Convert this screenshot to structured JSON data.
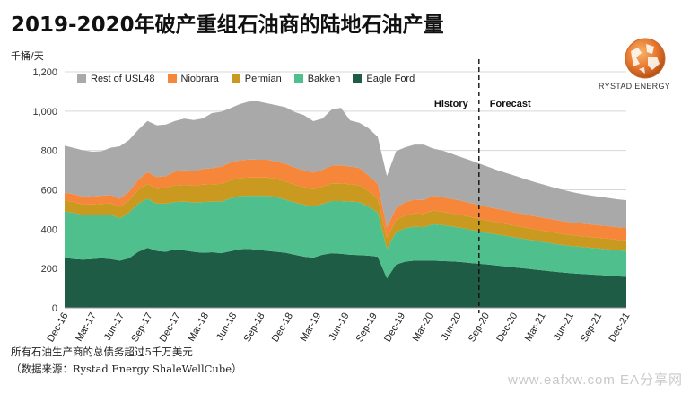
{
  "title": "2019-2020年破产重组石油商的陆地石油产量",
  "unit_label": "千桶/天",
  "brand": "RYSTAD ENERGY",
  "footnote1": "所有石油生产商的总债务超过5千万美元",
  "footnote2": "（数据来源：Rystad Energy ShaleWellCube）",
  "watermark": "www.eafxw.com  EA分享网",
  "chart_data": {
    "type": "area",
    "stacked": true,
    "ylim": [
      0,
      1200
    ],
    "yticks": [
      0,
      200,
      400,
      600,
      800,
      1000,
      1200
    ],
    "ytick_labels": [
      "0",
      "200",
      "400",
      "600",
      "800",
      "1,000",
      "1,200"
    ],
    "xtick_labels": [
      "Dec-16",
      "Mar-17",
      "Jun-17",
      "Sep-17",
      "Dec-17",
      "Mar-18",
      "Jun-18",
      "Sep-18",
      "Dec-18",
      "Mar-19",
      "Jun-19",
      "Sep-19",
      "Dec-19",
      "Mar-20",
      "Jun-20",
      "Sep-20",
      "Dec-20",
      "Mar-21",
      "Jun-21",
      "Sep-21",
      "Dec-21"
    ],
    "divider_label_left": "History",
    "divider_label_right": "Forecast",
    "divider_after_index": 45,
    "legend_order": [
      "Rest of USL48",
      "Niobrara",
      "Permian",
      "Bakken",
      "Eagle Ford"
    ],
    "grid": true,
    "legend": "top",
    "series": [
      {
        "name": "Eagle Ford",
        "color": "#1f5c45",
        "values": [
          255,
          248,
          245,
          248,
          252,
          248,
          240,
          252,
          285,
          305,
          290,
          285,
          298,
          292,
          285,
          280,
          283,
          278,
          288,
          298,
          300,
          295,
          290,
          285,
          280,
          270,
          260,
          255,
          270,
          278,
          275,
          270,
          268,
          265,
          260,
          150,
          220,
          235,
          240,
          240,
          240,
          238,
          236,
          233,
          228,
          224,
          220,
          215,
          210,
          205,
          200,
          195,
          190,
          185,
          180,
          176,
          173,
          170,
          167,
          164,
          160,
          158
        ]
      },
      {
        "name": "Bakken",
        "color": "#4fc08d",
        "values": [
          235,
          235,
          225,
          222,
          220,
          225,
          215,
          232,
          245,
          250,
          240,
          245,
          240,
          248,
          250,
          258,
          257,
          262,
          268,
          270,
          270,
          275,
          280,
          278,
          270,
          265,
          265,
          260,
          258,
          265,
          268,
          270,
          270,
          250,
          225,
          150,
          165,
          170,
          172,
          170,
          185,
          183,
          178,
          174,
          170,
          165,
          160,
          158,
          155,
          152,
          150,
          147,
          145,
          142,
          140,
          138,
          137,
          136,
          135,
          134,
          133,
          132
        ]
      },
      {
        "name": "Permian",
        "color": "#c99a1f",
        "values": [
          55,
          55,
          55,
          56,
          56,
          58,
          58,
          62,
          70,
          75,
          75,
          80,
          85,
          85,
          85,
          88,
          88,
          90,
          92,
          92,
          92,
          93,
          93,
          93,
          92,
          90,
          88,
          87,
          88,
          90,
          90,
          88,
          85,
          78,
          70,
          55,
          62,
          65,
          68,
          68,
          70,
          68,
          67,
          66,
          65,
          64,
          63,
          62,
          61,
          60,
          59,
          58,
          57,
          57,
          56,
          56,
          55,
          55,
          54,
          54,
          53,
          53
        ]
      },
      {
        "name": "Niobrara",
        "color": "#f6873a",
        "values": [
          40,
          40,
          40,
          42,
          42,
          42,
          42,
          45,
          50,
          60,
          60,
          60,
          70,
          75,
          75,
          80,
          82,
          88,
          90,
          90,
          92,
          90,
          90,
          88,
          90,
          88,
          87,
          85,
          86,
          90,
          92,
          90,
          88,
          80,
          75,
          55,
          60,
          68,
          70,
          70,
          75,
          74,
          73,
          72,
          71,
          70,
          69,
          68,
          68,
          67,
          67,
          66,
          66,
          66,
          65,
          65,
          65,
          64,
          64,
          64,
          64,
          64
        ]
      },
      {
        "name": "Rest of USL48",
        "color": "#a9a9a9",
        "values": [
          240,
          235,
          236,
          226,
          226,
          241,
          266,
          262,
          255,
          260,
          263,
          262,
          257,
          262,
          260,
          257,
          280,
          279,
          277,
          285,
          295,
          297,
          287,
          286,
          288,
          282,
          280,
          262,
          260,
          285,
          292,
          235,
          230,
          240,
          240,
          260,
          290,
          278,
          280,
          282,
          240,
          237,
          230,
          222,
          217,
          211,
          205,
          197,
          191,
          186,
          179,
          174,
          169,
          163,
          160,
          155,
          150,
          147,
          145,
          143,
          142,
          140
        ]
      }
    ]
  }
}
